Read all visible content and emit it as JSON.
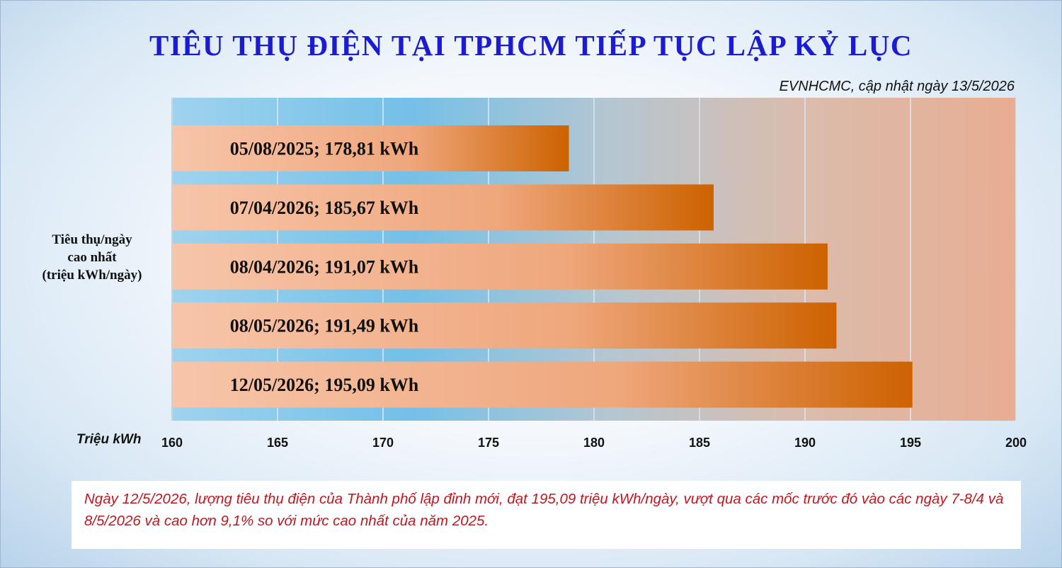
{
  "title": "TIÊU THỤ ĐIỆN TẠI TPHCM TIẾP TỤC LẬP KỶ LỤC",
  "source": "EVNHCMC, cập nhật ngày 13/5/2026",
  "note": "Ngày 12/5/2026, lượng tiêu thụ điện của Thành phố lập đỉnh mới, đạt 195,09 triệu kWh/ngày, vượt qua các mốc trước đó vào các ngày 7-8/4 và 8/5/2026 và cao hơn 9,1% so với mức cao nhất của năm 2025.",
  "colors": {
    "title": "#1b1bd6",
    "note_text": "#c0171f",
    "bar_start": "#f7c5aa",
    "bar_end": "#cd6200"
  },
  "chart_data": {
    "type": "bar",
    "orientation": "horizontal",
    "title": "TIÊU THỤ ĐIỆN TẠI TPHCM TIẾP TỤC LẬP KỶ LỤC",
    "ylabel": [
      "Tiêu thụ/ngày",
      "cao nhất",
      "(triệu kWh/ngày)"
    ],
    "xlabel": "Triệu kWh",
    "xlim": [
      160,
      200
    ],
    "xticks": [
      "160",
      "165",
      "170",
      "175",
      "180",
      "185",
      "190",
      "195",
      "200"
    ],
    "grid": true,
    "categories": [
      "05/08/2025",
      "07/04/2026",
      "08/04/2026",
      "08/05/2026",
      "12/05/2026"
    ],
    "values": [
      178.81,
      185.67,
      191.07,
      191.49,
      195.09
    ],
    "labels": [
      "05/08/2025; 178,81 kWh",
      "07/04/2026; 185,67 kWh",
      "08/04/2026; 191,07 kWh",
      "08/05/2026; 191,49 kWh",
      "12/05/2026; 195,09 kWh"
    ]
  }
}
